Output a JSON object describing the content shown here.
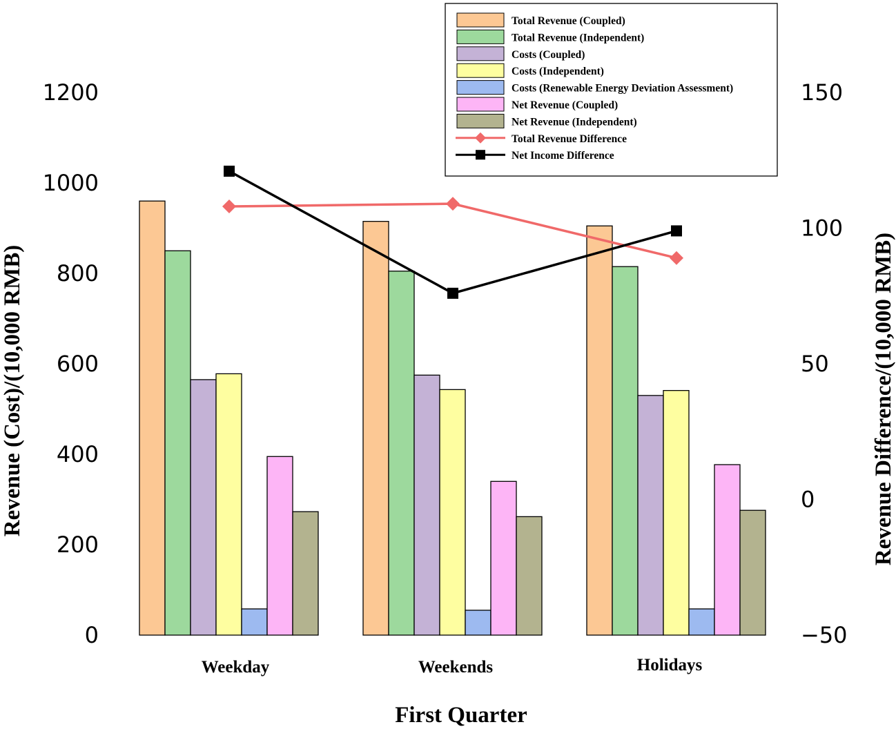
{
  "chart_data": {
    "type": "bar",
    "xlabel": "First Quarter",
    "ylabel": "Revenue (Cost)/(10,000 RMB)",
    "y2label": "Revenue Difference/(10,000 RMB)",
    "ylim": [
      0,
      1200
    ],
    "y2lim": [
      -50,
      150
    ],
    "yticks": [
      "0",
      "200",
      "400",
      "600",
      "800",
      "1000",
      "1200"
    ],
    "y2ticks": [
      "−50",
      "0",
      "50",
      "100",
      "150"
    ],
    "grid": false,
    "legend_position": "top-right",
    "categories": [
      "Weekday",
      "Weekends",
      "Holidays"
    ],
    "series": [
      {
        "name": "Total Revenue (Coupled)",
        "color": "#FCC894",
        "values": [
          960,
          915,
          905
        ]
      },
      {
        "name": "Total Revenue (Independent)",
        "color": "#9DD99D",
        "values": [
          850,
          805,
          815
        ]
      },
      {
        "name": "Costs (Coupled)",
        "color": "#C4B2D6",
        "values": [
          565,
          575,
          530
        ]
      },
      {
        "name": "Costs (Independent)",
        "color": "#FEFEA0",
        "values": [
          578,
          543,
          541
        ]
      },
      {
        "name": "Costs (Renewable Energy Deviation Assessment)",
        "color": "#9DBAF0",
        "values": [
          58,
          55,
          58
        ]
      },
      {
        "name": "Net Revenue (Coupled)",
        "color": "#FDB5F6",
        "values": [
          395,
          340,
          377
        ]
      },
      {
        "name": "Net Revenue (Independent)",
        "color": "#B3B38F",
        "values": [
          273,
          262,
          276
        ]
      }
    ],
    "line_series": [
      {
        "name": "Total Revenue Difference",
        "color": "#F06969",
        "marker": "diamond",
        "values": [
          108,
          109,
          89
        ]
      },
      {
        "name": "Net Income Difference",
        "color": "#000000",
        "marker": "square",
        "values": [
          121,
          76,
          99
        ]
      }
    ]
  }
}
